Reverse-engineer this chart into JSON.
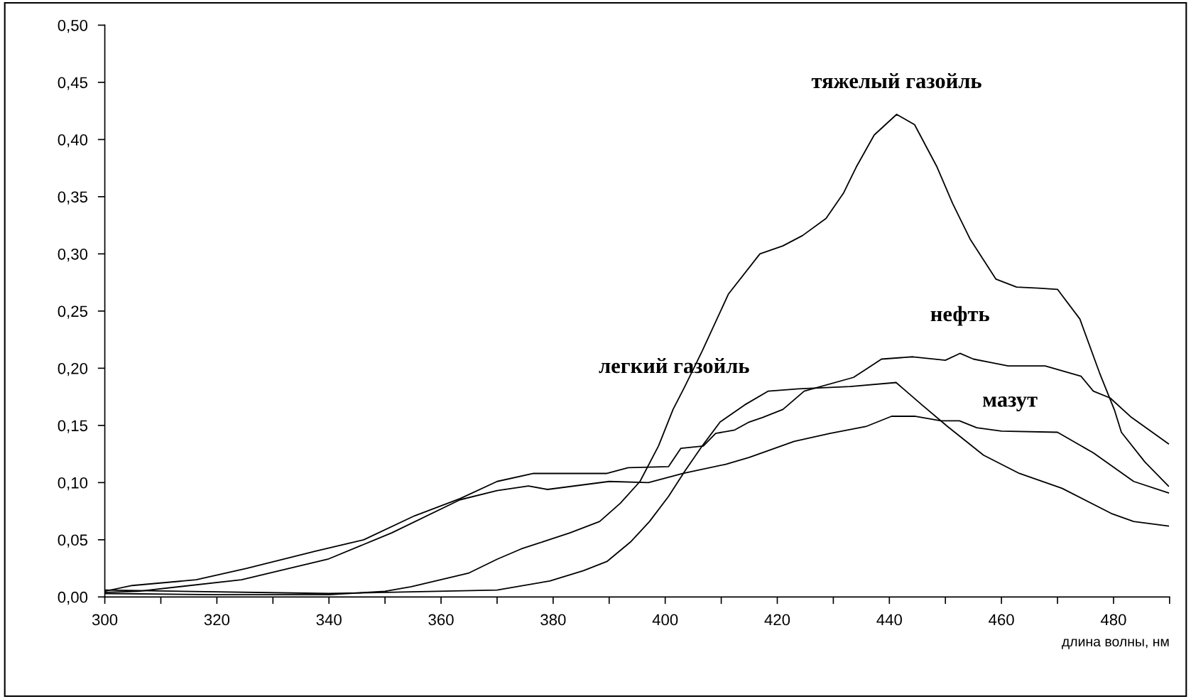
{
  "chart_data": {
    "type": "line",
    "xlabel": "длина волны, нм",
    "xlim": [
      300,
      490
    ],
    "ylim": [
      0,
      0.5
    ],
    "xticks": [
      300,
      {
        "value": 310,
        "label": null
      },
      320,
      {
        "value": 330,
        "label": null
      },
      340,
      {
        "value": 350,
        "label": null
      },
      360,
      {
        "value": 370,
        "label": null
      },
      380,
      {
        "value": 390,
        "label": null
      },
      400,
      {
        "value": 410,
        "label": null
      },
      420,
      {
        "value": 430,
        "label": null
      },
      440,
      {
        "value": 450,
        "label": null
      },
      460,
      {
        "value": 470,
        "label": null
      },
      480,
      {
        "value": 490,
        "label": null
      }
    ],
    "yticks": [
      {
        "value": 0,
        "label": "0,00"
      },
      {
        "value": 0.05,
        "label": "0,05"
      },
      {
        "value": 0.1,
        "label": "0,10"
      },
      {
        "value": 0.15,
        "label": "0,15"
      },
      {
        "value": 0.2,
        "label": "0,20"
      },
      {
        "value": 0.25,
        "label": "0,25"
      },
      {
        "value": 0.3,
        "label": "0,30"
      },
      {
        "value": 0.35,
        "label": "0,35"
      },
      {
        "value": 0.4,
        "label": "0,40"
      },
      {
        "value": 0.45,
        "label": "0,45"
      },
      {
        "value": 0.5,
        "label": "0,50"
      }
    ],
    "grid": false,
    "legend": false,
    "marker": "none",
    "line_style": "solid",
    "series": [
      {
        "name": "тяжелый газойль",
        "color": "#000000",
        "x": [
          300,
          320,
          340,
          350,
          354.7,
          365,
          370,
          374.3,
          383,
          388.3,
          392,
          395.5,
          398.8,
          401.4,
          403.5,
          406.6,
          411.3,
          416.9,
          421,
          424.5,
          428.7,
          431.8,
          434.1,
          437.3,
          441.3,
          444.5,
          448.5,
          451.3,
          454.4,
          459,
          462.7,
          466.6,
          470,
          474,
          477.5,
          480.2,
          481.4,
          485.6,
          489.8
        ],
        "values": [
          0.003,
          0.002,
          0.002,
          0.005,
          0.009,
          0.021,
          0.033,
          0.042,
          0.056,
          0.066,
          0.082,
          0.101,
          0.132,
          0.164,
          0.184,
          0.215,
          0.265,
          0.3,
          0.307,
          0.316,
          0.331,
          0.353,
          0.376,
          0.404,
          0.422,
          0.413,
          0.376,
          0.344,
          0.313,
          0.278,
          0.271,
          0.27,
          0.269,
          0.243,
          0.196,
          0.163,
          0.144,
          0.118,
          0.097
        ]
      },
      {
        "name": "нефть",
        "color": "#000000",
        "x": [
          300,
          304.9,
          316.3,
          325.3,
          337.6,
          346.2,
          355.3,
          363.4,
          370,
          376.5,
          389.6,
          393.4,
          400.6,
          402.8,
          406.8,
          409,
          412.4,
          415,
          417.4,
          421,
          424.8,
          433.6,
          435.8,
          438.6,
          444.2,
          450,
          452.6,
          455,
          461.2,
          467.8,
          474.2,
          476.4,
          479.4,
          483.2,
          489.8
        ],
        "values": [
          0.005,
          0.01,
          0.015,
          0.025,
          0.04,
          0.05,
          0.071,
          0.086,
          0.101,
          0.108,
          0.108,
          0.113,
          0.114,
          0.13,
          0.132,
          0.143,
          0.146,
          0.153,
          0.157,
          0.164,
          0.18,
          0.192,
          0.199,
          0.208,
          0.21,
          0.207,
          0.213,
          0.208,
          0.202,
          0.202,
          0.193,
          0.18,
          0.174,
          0.157,
          0.134
        ]
      },
      {
        "name": "мазут",
        "color": "#000000",
        "x": [
          300,
          306,
          324.4,
          339.8,
          351.2,
          363.4,
          370,
          375.6,
          379,
          390,
          397,
          403.2,
          410.8,
          415,
          423,
          429.4,
          435.8,
          440.4,
          444.5,
          449.2,
          452.5,
          455.6,
          460,
          470,
          476.4,
          483.6,
          489.8
        ],
        "values": [
          0.004,
          0.005,
          0.015,
          0.033,
          0.056,
          0.085,
          0.093,
          0.097,
          0.094,
          0.101,
          0.1,
          0.108,
          0.116,
          0.122,
          0.136,
          0.143,
          0.149,
          0.158,
          0.158,
          0.154,
          0.154,
          0.148,
          0.145,
          0.144,
          0.126,
          0.101,
          0.091
        ]
      },
      {
        "name": "легкий газойль",
        "color": "#000000",
        "x": [
          300,
          340,
          370,
          379.4,
          385.4,
          389.6,
          393.8,
          397.2,
          400.6,
          403.5,
          406.6,
          409.8,
          414.2,
          418.4,
          423.8,
          433,
          441.2,
          445.8,
          450.4,
          456.8,
          463.2,
          470.8,
          479.6,
          483.6,
          489.8
        ],
        "values": [
          0.006,
          0.003,
          0.006,
          0.014,
          0.023,
          0.031,
          0.048,
          0.066,
          0.088,
          0.11,
          0.132,
          0.153,
          0.168,
          0.18,
          0.182,
          0.184,
          0.1875,
          0.168,
          0.149,
          0.124,
          0.108,
          0.095,
          0.073,
          0.066,
          0.062
        ]
      }
    ]
  }
}
